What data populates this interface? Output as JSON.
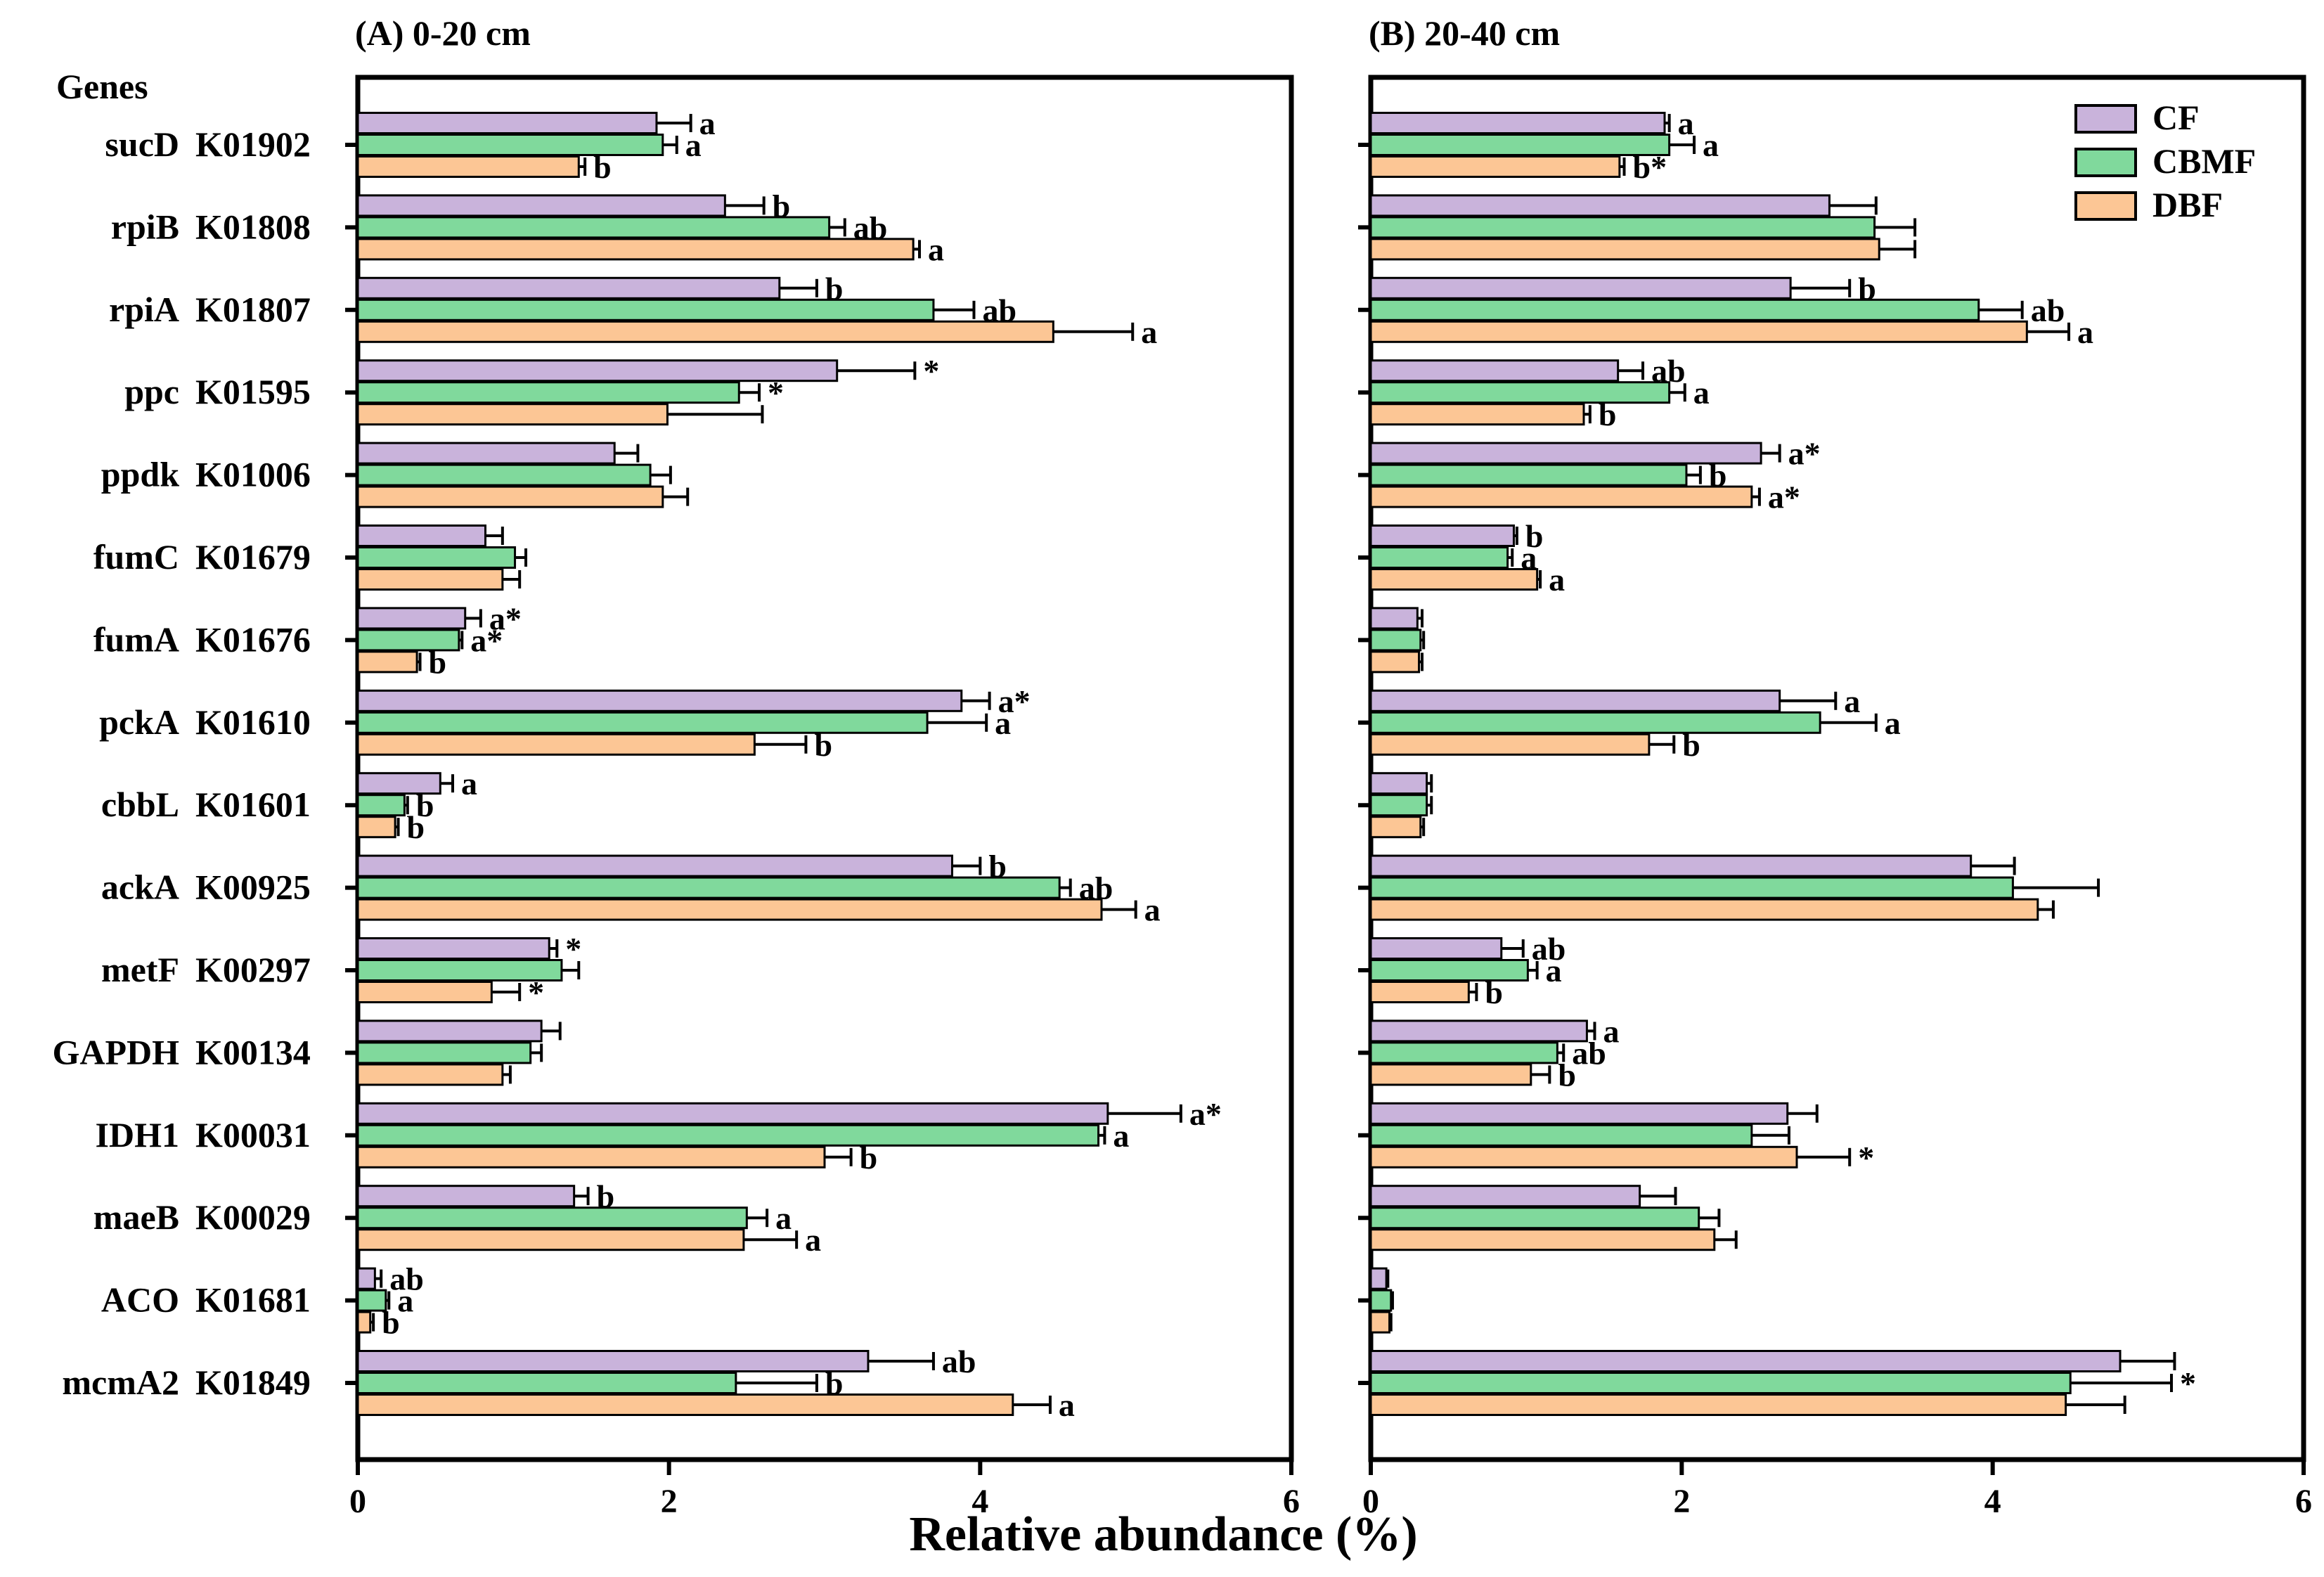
{
  "figure": {
    "x_axis_title": "Relative abundance (%)",
    "genes_header": "Genes",
    "rows": [
      {
        "gene": "sucD",
        "ko": "K01902"
      },
      {
        "gene": "rpiB",
        "ko": "K01808"
      },
      {
        "gene": "rpiA",
        "ko": "K01807"
      },
      {
        "gene": "ppc",
        "ko": "K01595"
      },
      {
        "gene": "ppdk",
        "ko": "K01006"
      },
      {
        "gene": "fumC",
        "ko": "K01679"
      },
      {
        "gene": "fumA",
        "ko": "K01676"
      },
      {
        "gene": "pckA",
        "ko": "K01610"
      },
      {
        "gene": "cbbL",
        "ko": "K01601"
      },
      {
        "gene": "ackA",
        "ko": "K00925"
      },
      {
        "gene": "metF",
        "ko": "K00297"
      },
      {
        "gene": "GAPDH",
        "ko": "K00134"
      },
      {
        "gene": "IDH1",
        "ko": "K00031"
      },
      {
        "gene": "maeB",
        "ko": "K00029"
      },
      {
        "gene": "ACO",
        "ko": "K01681"
      },
      {
        "gene": "mcmA2",
        "ko": "K01849"
      }
    ],
    "legend": [
      {
        "name": "CF",
        "color": "#c9b3db"
      },
      {
        "name": "CBMF",
        "color": "#80d99c"
      },
      {
        "name": "DBF",
        "color": "#fcc695"
      }
    ]
  },
  "chart_data": [
    {
      "type": "bar",
      "orientation": "horizontal",
      "title": "(A) 0-20 cm",
      "xlabel": "Relative abundance (%)",
      "xlim": [
        0,
        6
      ],
      "xticks": [
        0,
        2,
        4,
        6
      ],
      "categories": [
        "sucD K01902",
        "rpiB K01808",
        "rpiA K01807",
        "ppc K01595",
        "ppdk K01006",
        "fumC K01679",
        "fumA K01676",
        "pckA K01610",
        "cbbL K01601",
        "ackA K00925",
        "metF K00297",
        "GAPDH K00134",
        "IDH1 K00031",
        "maeB K00029",
        "ACO K01681",
        "mcmA2 K01849"
      ],
      "series": [
        {
          "name": "CF",
          "values": [
            1.92,
            2.36,
            2.71,
            3.08,
            1.65,
            0.82,
            0.69,
            3.88,
            0.53,
            3.82,
            1.23,
            1.18,
            4.82,
            1.39,
            0.11,
            3.28
          ],
          "errors": [
            0.22,
            0.25,
            0.24,
            0.5,
            0.15,
            0.11,
            0.1,
            0.18,
            0.08,
            0.18,
            0.05,
            0.12,
            0.47,
            0.09,
            0.04,
            0.42
          ],
          "labels": [
            "a",
            "b",
            "b",
            "*",
            "",
            "",
            "a*",
            "a*",
            "a",
            "b",
            "*",
            "",
            "a*",
            "b",
            "ab",
            "ab"
          ]
        },
        {
          "name": "CBMF",
          "values": [
            1.96,
            3.03,
            3.7,
            2.45,
            1.88,
            1.01,
            0.65,
            3.66,
            0.3,
            4.51,
            1.31,
            1.11,
            4.76,
            2.5,
            0.18,
            2.43
          ],
          "errors": [
            0.09,
            0.1,
            0.26,
            0.13,
            0.13,
            0.07,
            0.02,
            0.38,
            0.02,
            0.07,
            0.11,
            0.07,
            0.04,
            0.13,
            0.02,
            0.52
          ],
          "labels": [
            "a",
            "ab",
            "ab",
            "*",
            "",
            "",
            "a*",
            "a",
            "b",
            "ab",
            "",
            "",
            "a",
            "a",
            "a",
            "b"
          ]
        },
        {
          "name": "DBF",
          "values": [
            1.42,
            3.57,
            4.47,
            1.99,
            1.96,
            0.93,
            0.38,
            2.55,
            0.24,
            4.78,
            0.86,
            0.93,
            3.0,
            2.48,
            0.08,
            4.21
          ],
          "errors": [
            0.04,
            0.04,
            0.51,
            0.61,
            0.16,
            0.11,
            0.02,
            0.33,
            0.02,
            0.22,
            0.18,
            0.05,
            0.17,
            0.34,
            0.02,
            0.24
          ],
          "labels": [
            "b",
            "a",
            "a",
            "",
            "",
            "",
            "b",
            "b",
            "b",
            "a",
            "*",
            "",
            "b",
            "a",
            "b",
            "a"
          ]
        }
      ]
    },
    {
      "type": "bar",
      "orientation": "horizontal",
      "title": "(B) 20-40 cm",
      "xlabel": "Relative abundance (%)",
      "xlim": [
        0,
        6
      ],
      "xticks": [
        0,
        2,
        4,
        6
      ],
      "categories": [
        "sucD K01902",
        "rpiB K01808",
        "rpiA K01807",
        "ppc K01595",
        "ppdk K01006",
        "fumC K01679",
        "fumA K01676",
        "pckA K01610",
        "cbbL K01601",
        "ackA K00925",
        "metF K00297",
        "GAPDH K00134",
        "IDH1 K00031",
        "maeB K00029",
        "ACO K01681",
        "mcmA2 K01849"
      ],
      "series": [
        {
          "name": "CF",
          "values": [
            1.89,
            2.95,
            2.7,
            1.59,
            2.51,
            0.92,
            0.3,
            2.63,
            0.36,
            3.86,
            0.84,
            1.39,
            2.68,
            1.73,
            0.1,
            4.82
          ],
          "errors": [
            0.03,
            0.3,
            0.38,
            0.16,
            0.12,
            0.02,
            0.03,
            0.36,
            0.03,
            0.28,
            0.14,
            0.05,
            0.19,
            0.23,
            0.01,
            0.35
          ],
          "labels": [
            "a",
            "",
            "b",
            "ab",
            "a*",
            "b",
            "",
            "a",
            "",
            "",
            "ab",
            "a",
            "",
            "",
            "",
            ""
          ]
        },
        {
          "name": "CBMF",
          "values": [
            1.92,
            3.24,
            3.91,
            1.92,
            2.03,
            0.88,
            0.32,
            2.89,
            0.36,
            4.13,
            1.01,
            1.2,
            2.45,
            2.11,
            0.13,
            4.5
          ],
          "errors": [
            0.16,
            0.26,
            0.28,
            0.1,
            0.09,
            0.03,
            0.02,
            0.36,
            0.03,
            0.55,
            0.06,
            0.04,
            0.24,
            0.13,
            0.01,
            0.65
          ],
          "labels": [
            "a",
            "",
            "ab",
            "a",
            "b",
            "a",
            "",
            "a",
            "",
            "",
            "a",
            "ab",
            "",
            "",
            "",
            "*"
          ]
        },
        {
          "name": "DBF",
          "values": [
            1.6,
            3.27,
            4.22,
            1.37,
            2.45,
            1.07,
            0.31,
            1.79,
            0.32,
            4.29,
            0.63,
            1.03,
            2.74,
            2.21,
            0.12,
            4.47
          ],
          "errors": [
            0.03,
            0.23,
            0.27,
            0.04,
            0.05,
            0.02,
            0.02,
            0.16,
            0.02,
            0.1,
            0.05,
            0.12,
            0.34,
            0.14,
            0.01,
            0.38
          ],
          "labels": [
            "b*",
            "",
            "a",
            "b",
            "a*",
            "a",
            "",
            "b",
            "",
            "",
            "b",
            "b",
            "*",
            "",
            "",
            ""
          ]
        }
      ]
    }
  ]
}
